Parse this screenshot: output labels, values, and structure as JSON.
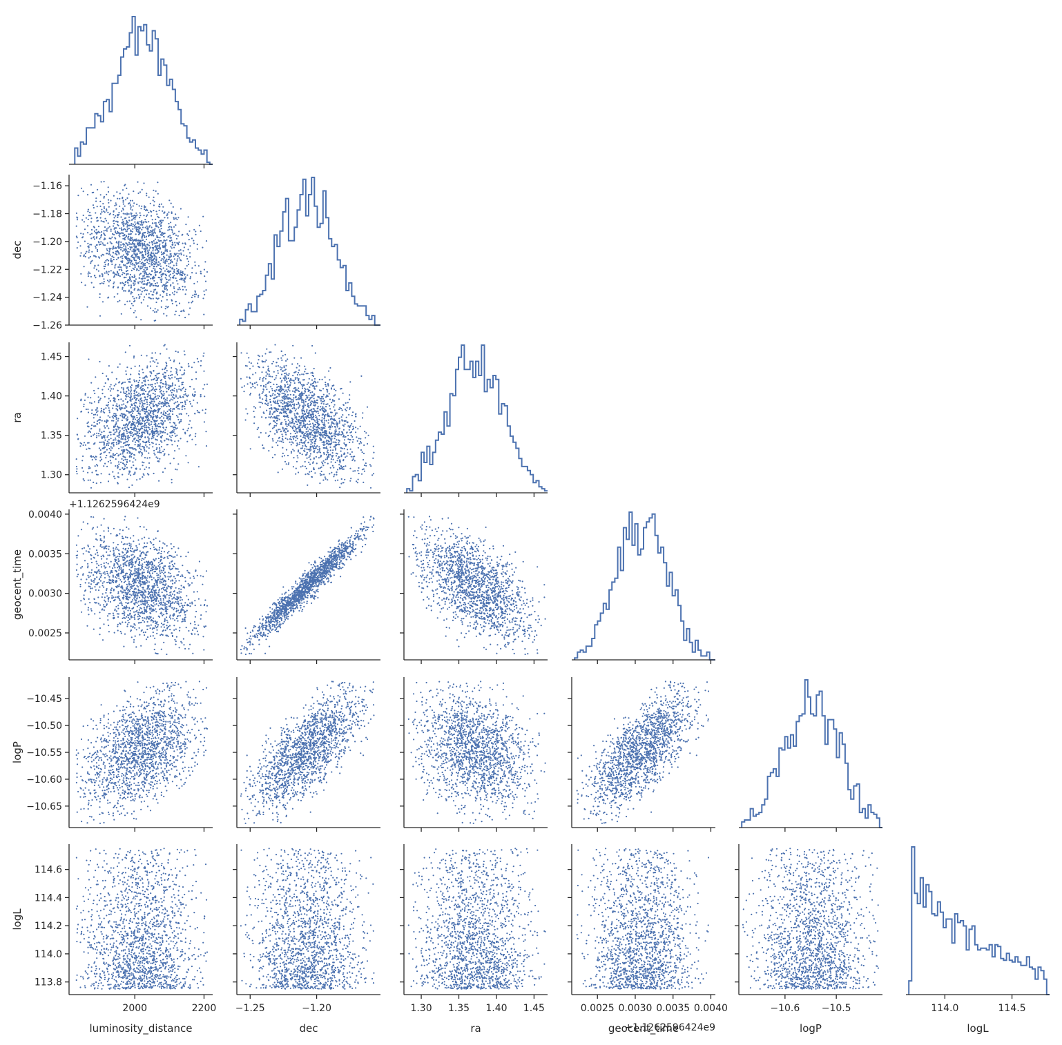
{
  "figure": {
    "type": "pairplot-corner",
    "marker_color": "#4c72b0",
    "axis_color": "#262626"
  },
  "chart_data": {
    "type": "scatter",
    "variables": [
      {
        "name": "luminosity_distance",
        "label": "luminosity_distance",
        "range": [
          1810,
          2225
        ],
        "ticks": [
          2000,
          2200
        ],
        "tick_labels": [
          "2000",
          "2200"
        ],
        "ylabel": "",
        "center": 2020,
        "sd": 85,
        "bounds": [
          1830,
          2210
        ],
        "hist": "gauss"
      },
      {
        "name": "dec",
        "label": "dec",
        "range": [
          -1.26,
          -1.152
        ],
        "ticks": [
          -1.26,
          -1.24,
          -1.22,
          -1.2,
          -1.18,
          -1.16
        ],
        "tick_labels": [
          "−1.26",
          "−1.24",
          "−1.22",
          "−1.20",
          "−1.18",
          "−1.16"
        ],
        "xticks": [
          -1.25,
          -1.2
        ],
        "xtick_labels": [
          "−1.25",
          "−1.20"
        ],
        "ylabel": "dec",
        "center": -1.207,
        "sd": 0.021,
        "bounds": [
          -1.257,
          -1.153
        ],
        "hist": "gauss"
      },
      {
        "name": "ra",
        "label": "ra",
        "range": [
          1.277,
          1.468
        ],
        "ticks": [
          1.3,
          1.35,
          1.4,
          1.45
        ],
        "tick_labels": [
          "1.30",
          "1.35",
          "1.40",
          "1.45"
        ],
        "ylabel": "ra",
        "center": 1.372,
        "sd": 0.038,
        "bounds": [
          1.283,
          1.465
        ],
        "hist": "gauss"
      },
      {
        "name": "geocent_time",
        "label": "geocent_time",
        "range": [
          0.00216,
          0.00406
        ],
        "ticks": [
          0.0025,
          0.003,
          0.0035,
          0.004
        ],
        "tick_labels": [
          "0.0025",
          "0.0030",
          "0.0035",
          "0.0040"
        ],
        "ylabel": "geocent_time",
        "offset_label": "+1.1262596424e9",
        "center": 0.00309,
        "sd": 0.00035,
        "bounds": [
          0.00222,
          0.00399
        ],
        "hist": "gauss"
      },
      {
        "name": "logP",
        "label": "logP",
        "range": [
          -10.69,
          -10.41
        ],
        "ticks": [
          -10.65,
          -10.6,
          -10.55,
          -10.5,
          -10.45
        ],
        "tick_labels": [
          "−10.65",
          "−10.60",
          "−10.55",
          "−10.50",
          "−10.45"
        ],
        "xticks": [
          -10.6,
          -10.5
        ],
        "xtick_labels": [
          "−10.6",
          "−10.5"
        ],
        "ylabel": "logP",
        "center": -10.545,
        "sd": 0.055,
        "bounds": [
          -10.682,
          -10.418
        ],
        "hist": "gauss"
      },
      {
        "name": "logL",
        "label": "logL",
        "range": [
          113.71,
          114.78
        ],
        "ticks": [
          113.8,
          114.0,
          114.2,
          114.4,
          114.6
        ],
        "tick_labels": [
          "113.8",
          "114.0",
          "114.2",
          "114.4",
          "114.6"
        ],
        "xticks": [
          114.0,
          114.5
        ],
        "xtick_labels": [
          "114.0",
          "114.5"
        ],
        "ylabel": "logL",
        "center": 113.75,
        "sd": 0,
        "bounds": [
          113.75,
          114.75
        ],
        "hist": "decay"
      }
    ],
    "n_samples": 1600,
    "correlations": {
      "0-1": -0.3,
      "0-2": 0.35,
      "0-3": -0.35,
      "0-4": 0.4,
      "1-2": -0.6,
      "1-3": 0.97,
      "1-4": 0.7,
      "2-3": -0.62,
      "2-4": -0.3,
      "3-4": 0.68
    },
    "grid": false,
    "legend": "none"
  }
}
